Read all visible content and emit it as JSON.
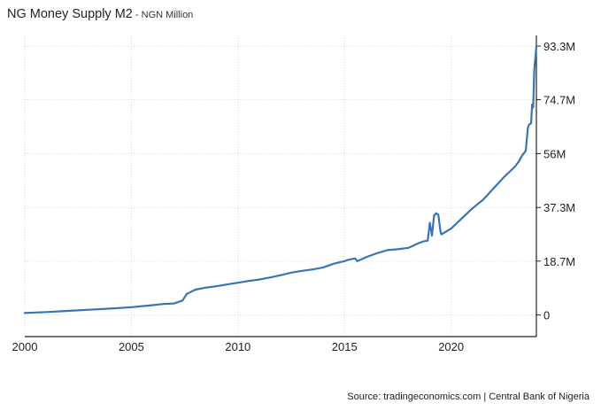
{
  "title": "NG Money Supply M2",
  "subtitle_separator": " - ",
  "unit": "NGN Million",
  "source": "Source: tradingeconomics.com | Central Bank of Nigeria",
  "colors": {
    "line": "#3b73b3",
    "grid": "#d7d7d7",
    "axis": "#222222"
  },
  "chart_data": {
    "type": "line",
    "title": "NG Money Supply M2",
    "ylabel": "NGN Million",
    "xlabel": "",
    "xlim": [
      2000,
      2024
    ],
    "ylim": [
      -7500000,
      97000000
    ],
    "x_ticks": [
      2000,
      2005,
      2010,
      2015,
      2020
    ],
    "x_tick_labels": [
      "2000",
      "2005",
      "2010",
      "2015",
      "2020"
    ],
    "y_ticks": [
      0,
      18700000,
      37300000,
      56000000,
      74700000,
      93300000
    ],
    "y_tick_labels": [
      "0",
      "18.7M",
      "37.3M",
      "56M",
      "74.7M",
      "93.3M"
    ],
    "grid": true,
    "series": [
      {
        "name": "M2",
        "x": [
          2000.0,
          2001.0,
          2002.0,
          2003.0,
          2004.0,
          2005.0,
          2006.0,
          2006.5,
          2007.0,
          2007.4,
          2007.6,
          2008.0,
          2008.5,
          2009.0,
          2009.5,
          2010.0,
          2010.5,
          2011.0,
          2011.5,
          2012.0,
          2012.5,
          2013.0,
          2013.5,
          2014.0,
          2014.5,
          2015.0,
          2015.2,
          2015.5,
          2015.6,
          2016.0,
          2016.5,
          2017.0,
          2017.5,
          2018.0,
          2018.5,
          2018.7,
          2018.9,
          2019.0,
          2019.1,
          2019.2,
          2019.3,
          2019.4,
          2019.5,
          2019.55,
          2019.6,
          2020.0,
          2020.5,
          2021.0,
          2021.5,
          2022.0,
          2022.5,
          2023.0,
          2023.2,
          2023.3,
          2023.5,
          2023.6,
          2023.65,
          2023.75,
          2023.8,
          2023.85,
          2023.9,
          2024.0
        ],
        "values": [
          700000,
          1000000,
          1400000,
          1800000,
          2200000,
          2700000,
          3400000,
          3800000,
          4000000,
          5000000,
          7300000,
          8800000,
          9500000,
          10000000,
          10600000,
          11200000,
          11800000,
          12300000,
          13000000,
          13800000,
          14700000,
          15300000,
          15800000,
          16500000,
          17800000,
          18700000,
          19200000,
          19600000,
          18700000,
          20000000,
          21400000,
          22500000,
          22800000,
          23300000,
          25000000,
          25500000,
          25800000,
          32000000,
          27500000,
          34500000,
          35300000,
          34800000,
          29000000,
          28000000,
          28200000,
          30000000,
          33500000,
          37000000,
          40000000,
          44000000,
          48000000,
          51500000,
          53500000,
          55000000,
          57000000,
          65000000,
          66000000,
          66500000,
          73000000,
          72000000,
          85000000,
          93300000
        ]
      }
    ]
  }
}
